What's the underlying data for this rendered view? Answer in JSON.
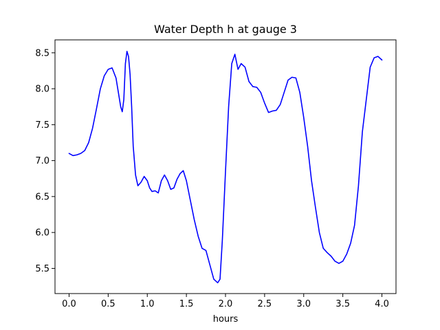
{
  "chart_data": {
    "type": "line",
    "title": "Water Depth h at gauge 3",
    "xlabel": "hours",
    "ylabel": "",
    "xlim": [
      -0.18,
      4.18
    ],
    "ylim": [
      5.15,
      8.68
    ],
    "xticks": [
      0.0,
      0.5,
      1.0,
      1.5,
      2.0,
      2.5,
      3.0,
      3.5,
      4.0
    ],
    "xtick_labels": [
      "0.0",
      "0.5",
      "1.0",
      "1.5",
      "2.0",
      "2.5",
      "3.0",
      "3.5",
      "4.0"
    ],
    "yticks": [
      5.5,
      6.0,
      6.5,
      7.0,
      7.5,
      8.0,
      8.5
    ],
    "ytick_labels": [
      "5.5",
      "6.0",
      "6.5",
      "7.0",
      "7.5",
      "8.0",
      "8.5"
    ],
    "grid": false,
    "legend": "none",
    "series": [
      {
        "color": "#0000ff",
        "x": [
          0.0,
          0.05,
          0.1,
          0.15,
          0.2,
          0.25,
          0.3,
          0.35,
          0.4,
          0.45,
          0.5,
          0.55,
          0.6,
          0.63,
          0.66,
          0.68,
          0.7,
          0.72,
          0.74,
          0.76,
          0.78,
          0.8,
          0.82,
          0.85,
          0.88,
          0.92,
          0.96,
          1.0,
          1.03,
          1.06,
          1.1,
          1.14,
          1.18,
          1.22,
          1.26,
          1.3,
          1.34,
          1.38,
          1.42,
          1.46,
          1.5,
          1.55,
          1.6,
          1.65,
          1.7,
          1.75,
          1.8,
          1.85,
          1.9,
          1.93,
          1.96,
          2.0,
          2.04,
          2.08,
          2.12,
          2.16,
          2.2,
          2.25,
          2.3,
          2.35,
          2.4,
          2.45,
          2.5,
          2.55,
          2.6,
          2.65,
          2.7,
          2.75,
          2.8,
          2.85,
          2.9,
          2.95,
          3.0,
          3.05,
          3.1,
          3.15,
          3.2,
          3.25,
          3.3,
          3.35,
          3.4,
          3.45,
          3.5,
          3.55,
          3.6,
          3.65,
          3.7,
          3.75,
          3.8,
          3.85,
          3.9,
          3.95,
          4.0
        ],
        "y": [
          7.1,
          7.07,
          7.08,
          7.1,
          7.14,
          7.25,
          7.45,
          7.72,
          8.0,
          8.18,
          8.27,
          8.29,
          8.15,
          7.95,
          7.75,
          7.68,
          7.85,
          8.35,
          8.52,
          8.45,
          8.2,
          7.75,
          7.2,
          6.8,
          6.65,
          6.7,
          6.78,
          6.72,
          6.62,
          6.57,
          6.58,
          6.55,
          6.72,
          6.8,
          6.72,
          6.6,
          6.62,
          6.74,
          6.82,
          6.86,
          6.72,
          6.45,
          6.18,
          5.95,
          5.78,
          5.75,
          5.55,
          5.35,
          5.3,
          5.35,
          5.9,
          6.85,
          7.75,
          8.35,
          8.48,
          8.27,
          8.35,
          8.3,
          8.1,
          8.03,
          8.02,
          7.95,
          7.8,
          7.67,
          7.69,
          7.7,
          7.78,
          7.95,
          8.12,
          8.16,
          8.15,
          7.95,
          7.6,
          7.2,
          6.72,
          6.35,
          6.0,
          5.78,
          5.72,
          5.67,
          5.6,
          5.57,
          5.6,
          5.7,
          5.85,
          6.1,
          6.65,
          7.4,
          7.85,
          8.3,
          8.43,
          8.45,
          8.4
        ]
      }
    ]
  }
}
